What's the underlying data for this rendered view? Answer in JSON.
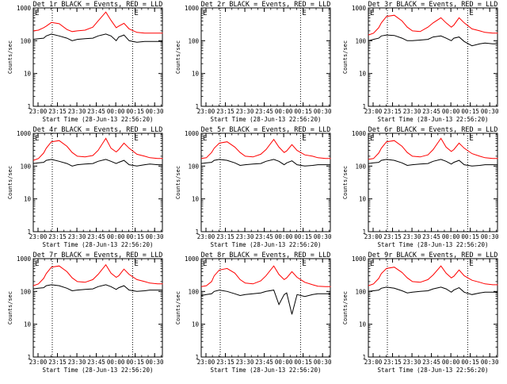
{
  "chart_data": {
    "type": "line",
    "layout": "3x3 grid",
    "ylabel": "Counts/sec",
    "xlabel": "Start Time (28-Jun-13 22:56:20)",
    "yscale": "log",
    "ylim": [
      1,
      1000
    ],
    "xlim": [
      "22:56:20",
      "00:36:00"
    ],
    "x_tick_labels": [
      "23:00",
      "23:15",
      "23:30",
      "23:45",
      "00:00",
      "00:15",
      "00:30"
    ],
    "y_tick_labels": [
      "1",
      "10",
      "100",
      "1000"
    ],
    "vertical_dotted_lines": [
      "23:11",
      "00:13"
    ],
    "series_colors": {
      "events": "#000000",
      "lld": "#ff0000"
    },
    "time_axis_minutes": [
      0,
      4,
      8,
      10,
      14,
      20,
      26,
      30,
      34,
      40,
      46,
      50,
      56,
      60,
      64,
      66,
      70,
      74,
      80,
      86,
      90,
      96,
      100
    ],
    "panels": [
      {
        "title": "Det 1r BLACK = Events, RED = LLD",
        "marker": "E",
        "lld": [
          200,
          210,
          250,
          280,
          360,
          330,
          220,
          190,
          200,
          210,
          260,
          400,
          750,
          420,
          250,
          280,
          340,
          230,
          180,
          170,
          170,
          170,
          170
        ],
        "events": [
          110,
          115,
          120,
          140,
          160,
          140,
          120,
          100,
          110,
          115,
          120,
          140,
          160,
          140,
          100,
          130,
          150,
          100,
          90,
          95,
          95,
          95,
          95
        ]
      },
      {
        "title": "Det 2r BLACK = Events, RED = LLD",
        "marker": "E",
        "lld": [],
        "events": []
      },
      {
        "title": "Det 3r BLACK = Events, RED = LLD",
        "marker": "E",
        "lld": [
          150,
          170,
          250,
          350,
          550,
          600,
          400,
          260,
          200,
          190,
          260,
          350,
          500,
          350,
          260,
          300,
          500,
          350,
          230,
          200,
          180,
          170,
          170
        ],
        "events": [
          100,
          110,
          120,
          140,
          150,
          145,
          120,
          100,
          100,
          105,
          110,
          130,
          140,
          120,
          100,
          120,
          130,
          95,
          70,
          80,
          85,
          80,
          80
        ]
      },
      {
        "title": "Det 4r BLACK = Events, RED = LLD",
        "marker": "E",
        "lld": [
          150,
          170,
          250,
          350,
          550,
          600,
          400,
          260,
          200,
          190,
          210,
          300,
          700,
          350,
          270,
          320,
          500,
          350,
          230,
          200,
          180,
          170,
          170
        ],
        "events": [
          120,
          125,
          130,
          150,
          160,
          140,
          120,
          100,
          110,
          115,
          120,
          140,
          160,
          140,
          120,
          130,
          150,
          110,
          100,
          110,
          115,
          110,
          110
        ]
      },
      {
        "title": "Det 5r BLACK = Events, RED = LLD",
        "marker": "E",
        "lld": [
          170,
          180,
          260,
          350,
          500,
          550,
          380,
          260,
          200,
          190,
          230,
          320,
          650,
          380,
          260,
          290,
          450,
          300,
          220,
          200,
          180,
          170,
          170
        ],
        "events": [
          120,
          125,
          130,
          150,
          160,
          150,
          125,
          105,
          110,
          115,
          120,
          140,
          160,
          140,
          110,
          125,
          145,
          110,
          100,
          105,
          110,
          110,
          110
        ]
      },
      {
        "title": "Det 6r BLACK = Events, RED = LLD",
        "marker": "E",
        "lld": [
          160,
          170,
          250,
          350,
          550,
          600,
          400,
          260,
          200,
          190,
          220,
          320,
          700,
          380,
          280,
          320,
          500,
          350,
          240,
          200,
          180,
          170,
          170
        ],
        "events": [
          120,
          125,
          130,
          150,
          160,
          150,
          125,
          105,
          110,
          115,
          120,
          140,
          160,
          140,
          115,
          130,
          150,
          110,
          100,
          105,
          110,
          110,
          110
        ]
      },
      {
        "title": "Det 7r BLACK = Events, RED = LLD",
        "marker": "E",
        "lld": [
          150,
          170,
          250,
          350,
          550,
          600,
          400,
          260,
          200,
          190,
          230,
          330,
          650,
          360,
          270,
          300,
          480,
          330,
          230,
          200,
          180,
          170,
          170
        ],
        "events": [
          120,
          125,
          130,
          150,
          160,
          150,
          125,
          105,
          110,
          115,
          120,
          140,
          160,
          140,
          115,
          130,
          150,
          110,
          100,
          105,
          110,
          110,
          110
        ]
      },
      {
        "title": "Det 8r BLACK = Events, RED = LLD",
        "marker": "E",
        "lld": [
          140,
          150,
          200,
          300,
          450,
          500,
          360,
          230,
          180,
          170,
          210,
          300,
          600,
          330,
          230,
          260,
          400,
          270,
          190,
          160,
          145,
          140,
          140
        ],
        "events": [
          75,
          80,
          85,
          100,
          110,
          100,
          85,
          75,
          80,
          85,
          90,
          100,
          110,
          40,
          80,
          90,
          20,
          80,
          70,
          80,
          85,
          85,
          85
        ]
      },
      {
        "title": "Det 9r BLACK = Events, RED = LLD",
        "marker": "E",
        "lld": [
          150,
          170,
          250,
          350,
          500,
          550,
          380,
          260,
          200,
          190,
          230,
          320,
          600,
          360,
          260,
          290,
          450,
          300,
          220,
          190,
          170,
          160,
          160
        ],
        "events": [
          100,
          105,
          110,
          125,
          135,
          125,
          105,
          90,
          95,
          100,
          105,
          120,
          135,
          120,
          95,
          110,
          130,
          95,
          80,
          90,
          95,
          95,
          95
        ]
      }
    ]
  }
}
